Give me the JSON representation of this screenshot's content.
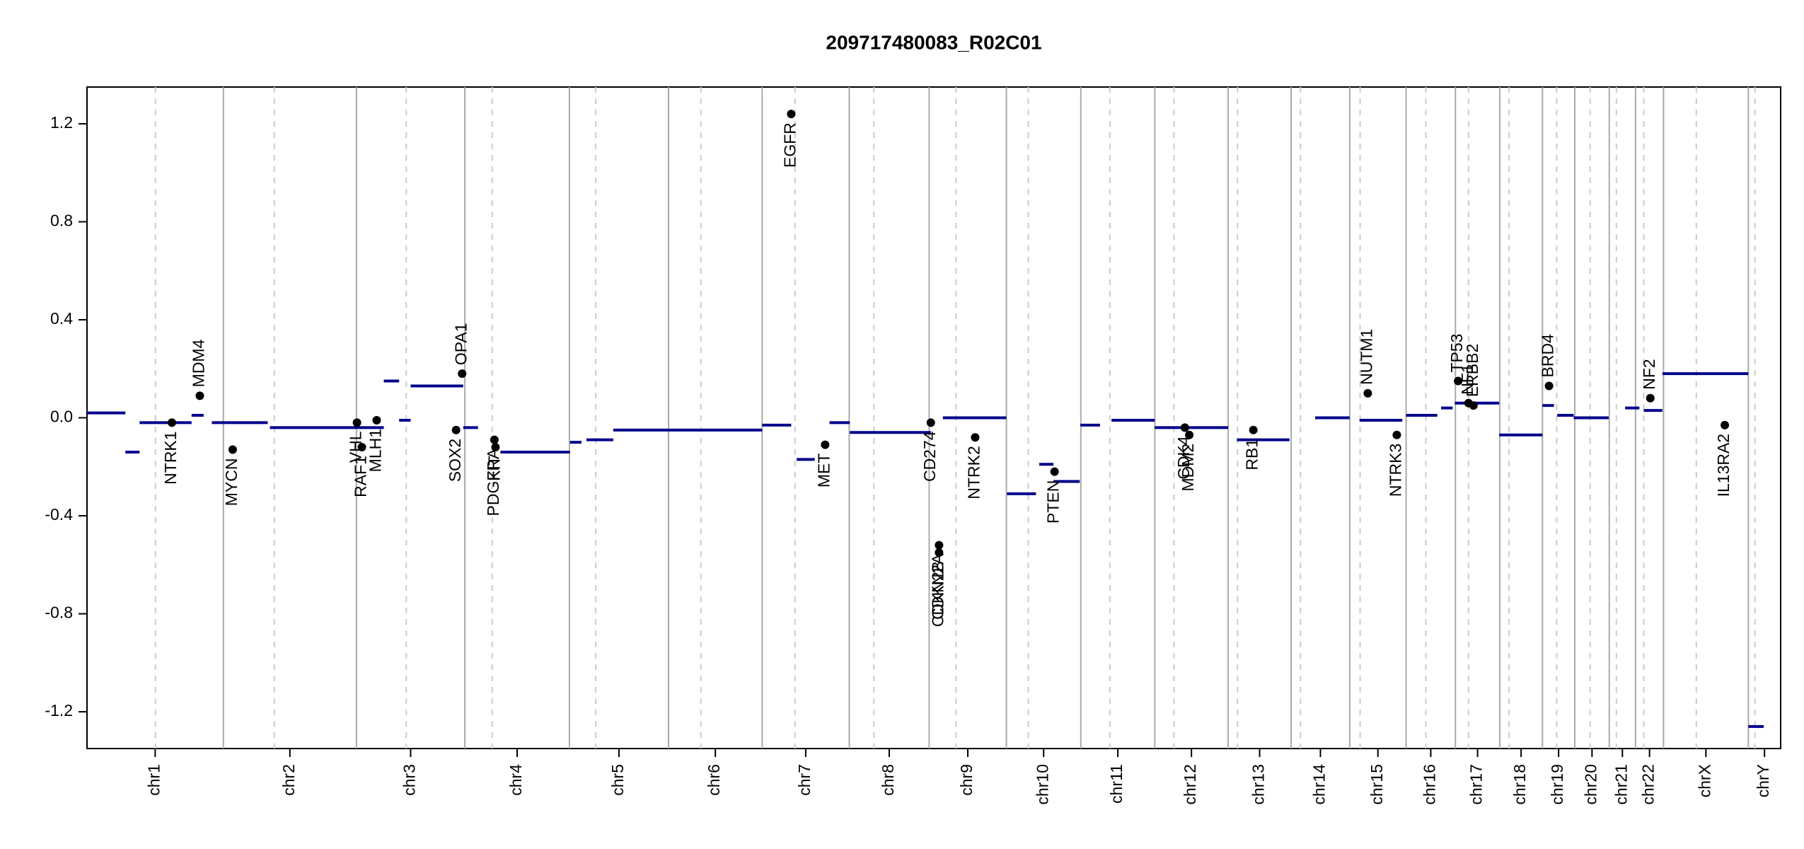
{
  "chart_data": {
    "type": "cnv",
    "title": "209717480083_R02C01",
    "xlim": [
      0,
      3093
    ],
    "ylim": [
      -1.35,
      1.35
    ],
    "yticks": [
      -1.2,
      -0.8,
      -0.4,
      {
        "value": 0,
        "label": "0.0"
      },
      0.4,
      0.8,
      1.2
    ],
    "segment_color": "#00008b",
    "gene_color": "#000000",
    "chromosomes": [
      {
        "name": "chr1",
        "start": 0,
        "end": 249,
        "centromere": 125
      },
      {
        "name": "chr2",
        "start": 249,
        "end": 492,
        "centromere": 342
      },
      {
        "name": "chr3",
        "start": 492,
        "end": 690,
        "centromere": 583
      },
      {
        "name": "chr4",
        "start": 690,
        "end": 881,
        "centromere": 740
      },
      {
        "name": "chr5",
        "start": 881,
        "end": 1062,
        "centromere": 929
      },
      {
        "name": "chr6",
        "start": 1062,
        "end": 1233,
        "centromere": 1121
      },
      {
        "name": "chr7",
        "start": 1233,
        "end": 1392,
        "centromere": 1293
      },
      {
        "name": "chr8",
        "start": 1392,
        "end": 1538,
        "centromere": 1437
      },
      {
        "name": "chr9",
        "start": 1538,
        "end": 1679,
        "centromere": 1587
      },
      {
        "name": "chr10",
        "start": 1679,
        "end": 1815,
        "centromere": 1719
      },
      {
        "name": "chr11",
        "start": 1815,
        "end": 1950,
        "centromere": 1868
      },
      {
        "name": "chr12",
        "start": 1950,
        "end": 2084,
        "centromere": 1985
      },
      {
        "name": "chr13",
        "start": 2084,
        "end": 2199,
        "centromere": 2101
      },
      {
        "name": "chr14",
        "start": 2199,
        "end": 2306,
        "centromere": 2216
      },
      {
        "name": "chr15",
        "start": 2306,
        "end": 2409,
        "centromere": 2325
      },
      {
        "name": "chr16",
        "start": 2409,
        "end": 2499,
        "centromere": 2445
      },
      {
        "name": "chr17",
        "start": 2499,
        "end": 2580,
        "centromere": 2523
      },
      {
        "name": "chr18",
        "start": 2580,
        "end": 2658,
        "centromere": 2597
      },
      {
        "name": "chr19",
        "start": 2658,
        "end": 2717,
        "centromere": 2684
      },
      {
        "name": "chr20",
        "start": 2717,
        "end": 2780,
        "centromere": 2745
      },
      {
        "name": "chr21",
        "start": 2780,
        "end": 2828,
        "centromere": 2793
      },
      {
        "name": "chr22",
        "start": 2828,
        "end": 2879,
        "centromere": 2843
      },
      {
        "name": "chrX",
        "start": 2879,
        "end": 3034,
        "centromere": 2939
      },
      {
        "name": "chrY",
        "start": 3034,
        "end": 3093,
        "centromere": 3046
      }
    ],
    "segments": [
      {
        "start": 0,
        "end": 70,
        "value": 0.02
      },
      {
        "start": 70,
        "end": 96,
        "value": -0.14
      },
      {
        "start": 96,
        "end": 191,
        "value": -0.02
      },
      {
        "start": 191,
        "end": 213,
        "value": 0.01
      },
      {
        "start": 228,
        "end": 330,
        "value": -0.02
      },
      {
        "start": 334,
        "end": 493,
        "value": -0.04
      },
      {
        "start": 493,
        "end": 542,
        "value": -0.04
      },
      {
        "start": 542,
        "end": 570,
        "value": 0.15
      },
      {
        "start": 570,
        "end": 591,
        "value": -0.01
      },
      {
        "start": 591,
        "end": 687,
        "value": 0.13
      },
      {
        "start": 687,
        "end": 714,
        "value": -0.04
      },
      {
        "start": 755,
        "end": 882,
        "value": -0.14
      },
      {
        "start": 882,
        "end": 903,
        "value": -0.1
      },
      {
        "start": 912,
        "end": 961,
        "value": -0.09
      },
      {
        "start": 961,
        "end": 1063,
        "value": -0.05
      },
      {
        "start": 1063,
        "end": 1233,
        "value": -0.05
      },
      {
        "start": 1233,
        "end": 1286,
        "value": -0.03
      },
      {
        "start": 1296,
        "end": 1329,
        "value": -0.17
      },
      {
        "start": 1356,
        "end": 1393,
        "value": -0.02
      },
      {
        "start": 1393,
        "end": 1541,
        "value": -0.06
      },
      {
        "start": 1563,
        "end": 1679,
        "value": 0.0
      },
      {
        "start": 1680,
        "end": 1733,
        "value": -0.31
      },
      {
        "start": 1739,
        "end": 1765,
        "value": -0.19
      },
      {
        "start": 1765,
        "end": 1813,
        "value": -0.26
      },
      {
        "start": 1814,
        "end": 1850,
        "value": -0.03
      },
      {
        "start": 1871,
        "end": 1950,
        "value": -0.01
      },
      {
        "start": 1950,
        "end": 2084,
        "value": -0.04
      },
      {
        "start": 2100,
        "end": 2196,
        "value": -0.09
      },
      {
        "start": 2243,
        "end": 2306,
        "value": 0.0
      },
      {
        "start": 2324,
        "end": 2402,
        "value": -0.01
      },
      {
        "start": 2409,
        "end": 2466,
        "value": 0.01
      },
      {
        "start": 2473,
        "end": 2494,
        "value": 0.04
      },
      {
        "start": 2498,
        "end": 2579,
        "value": 0.06
      },
      {
        "start": 2579,
        "end": 2658,
        "value": -0.07
      },
      {
        "start": 2658,
        "end": 2679,
        "value": 0.05
      },
      {
        "start": 2685,
        "end": 2715,
        "value": 0.01
      },
      {
        "start": 2715,
        "end": 2779,
        "value": 0.0
      },
      {
        "start": 2809,
        "end": 2835,
        "value": 0.04
      },
      {
        "start": 2843,
        "end": 2877,
        "value": 0.03
      },
      {
        "start": 2877,
        "end": 3034,
        "value": 0.18
      },
      {
        "start": 3034,
        "end": 3062,
        "value": -1.26
      }
    ],
    "genes": [
      {
        "name": "NTRK1",
        "x": 155,
        "value": -0.02
      },
      {
        "name": "MDM4",
        "x": 206,
        "value": 0.09
      },
      {
        "name": "MYCN",
        "x": 266,
        "value": -0.13
      },
      {
        "name": "VHL",
        "x": 493,
        "value": -0.02
      },
      {
        "name": "RAF1",
        "x": 502,
        "value": -0.12
      },
      {
        "name": "MLH1",
        "x": 529,
        "value": -0.01
      },
      {
        "name": "SOX2",
        "x": 674,
        "value": -0.05
      },
      {
        "name": "OPA1",
        "x": 685,
        "value": 0.18
      },
      {
        "name": "PDGFRA",
        "x": 744,
        "value": -0.09
      },
      {
        "name": "KIT",
        "x": 746,
        "value": -0.12
      },
      {
        "name": "EGFR",
        "x": 1286,
        "value": 1.24
      },
      {
        "name": "MET",
        "x": 1348,
        "value": -0.11
      },
      {
        "name": "CD274",
        "x": 1541,
        "value": -0.02
      },
      {
        "name": "CDKN2A",
        "x": 1556,
        "value": -0.52
      },
      {
        "name": "CDKN2B",
        "x": 1556,
        "value": -0.55
      },
      {
        "name": "NTRK2",
        "x": 1622,
        "value": -0.08
      },
      {
        "name": "PTEN",
        "x": 1767,
        "value": -0.22
      },
      {
        "name": "CDK4",
        "x": 2005,
        "value": -0.04
      },
      {
        "name": "MDM2",
        "x": 2013,
        "value": -0.07
      },
      {
        "name": "RB1",
        "x": 2130,
        "value": -0.05
      },
      {
        "name": "NUTM1",
        "x": 2339,
        "value": 0.1
      },
      {
        "name": "NTRK3",
        "x": 2392,
        "value": -0.07
      },
      {
        "name": "TP53",
        "x": 2504,
        "value": 0.15
      },
      {
        "name": "NF1",
        "x": 2523,
        "value": 0.06
      },
      {
        "name": "ERBB2",
        "x": 2532,
        "value": 0.05
      },
      {
        "name": "BRD4",
        "x": 2670,
        "value": 0.13
      },
      {
        "name": "NF2",
        "x": 2855,
        "value": 0.08
      },
      {
        "name": "IL13RA2",
        "x": 2991,
        "value": -0.03
      }
    ]
  }
}
